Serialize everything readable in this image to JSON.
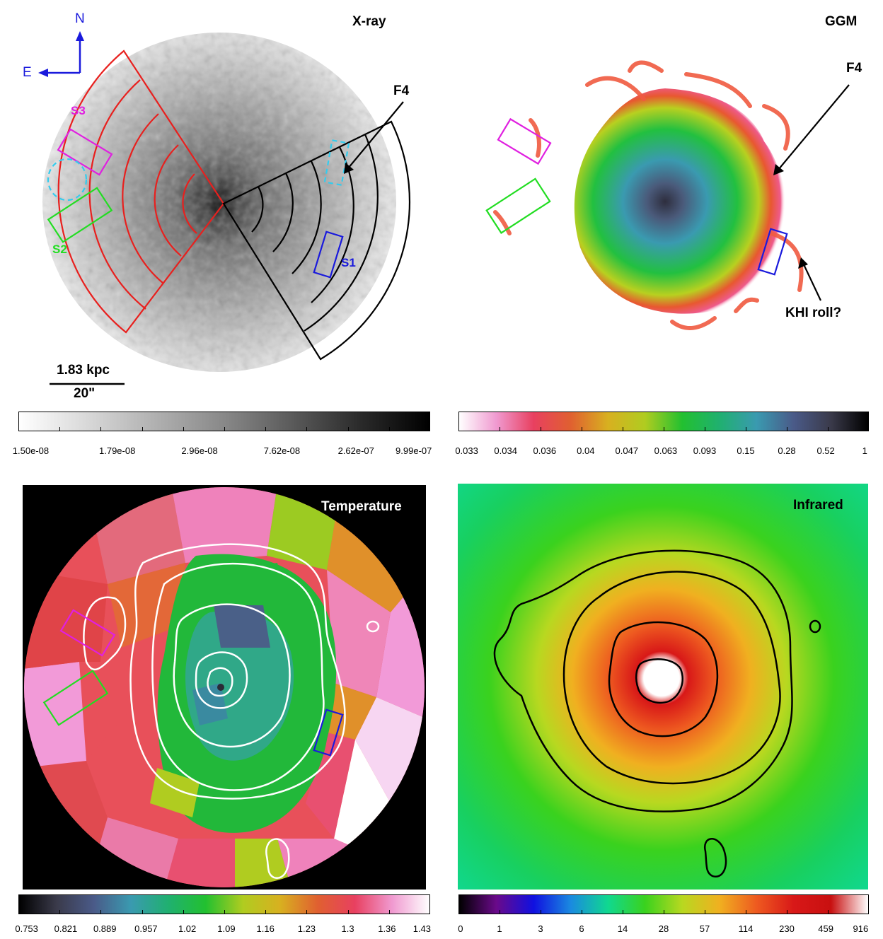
{
  "panels": {
    "xray": {
      "title": "X-ray",
      "labels": {
        "north": "N",
        "east": "E",
        "f4": "F4",
        "s1": "S1",
        "s2": "S2",
        "s3": "S3",
        "scale_kpc": "1.83 kpc",
        "scale_arcsec": "20\""
      },
      "colorbar_ticks": [
        "1.50e-08",
        "1.79e-08",
        "2.96e-08",
        "7.62e-08",
        "2.62e-07",
        "9.99e-07"
      ]
    },
    "ggm": {
      "title": "GGM",
      "labels": {
        "f4": "F4",
        "khi": "KHI roll?"
      },
      "colorbar_ticks": [
        "0.033",
        "0.034",
        "0.036",
        "0.04",
        "0.047",
        "0.063",
        "0.093",
        "0.15",
        "0.28",
        "0.52",
        "1"
      ]
    },
    "temperature": {
      "title": "Temperature",
      "colorbar_ticks": [
        "0.753",
        "0.821",
        "0.889",
        "0.957",
        "1.02",
        "1.09",
        "1.16",
        "1.23",
        "1.3",
        "1.36",
        "1.43"
      ]
    },
    "infrared": {
      "title": "Infrared",
      "colorbar_ticks": [
        "0",
        "1",
        "3",
        "6",
        "14",
        "28",
        "57",
        "114",
        "230",
        "459",
        "916"
      ]
    }
  },
  "colors": {
    "region_red": "#e8201e",
    "region_black": "#000000",
    "region_magenta": "#e020e0",
    "region_green": "#22dd22",
    "region_blue": "#1a1adc",
    "region_cyan": "#33ccee",
    "compass_blue": "#1a1adc"
  }
}
